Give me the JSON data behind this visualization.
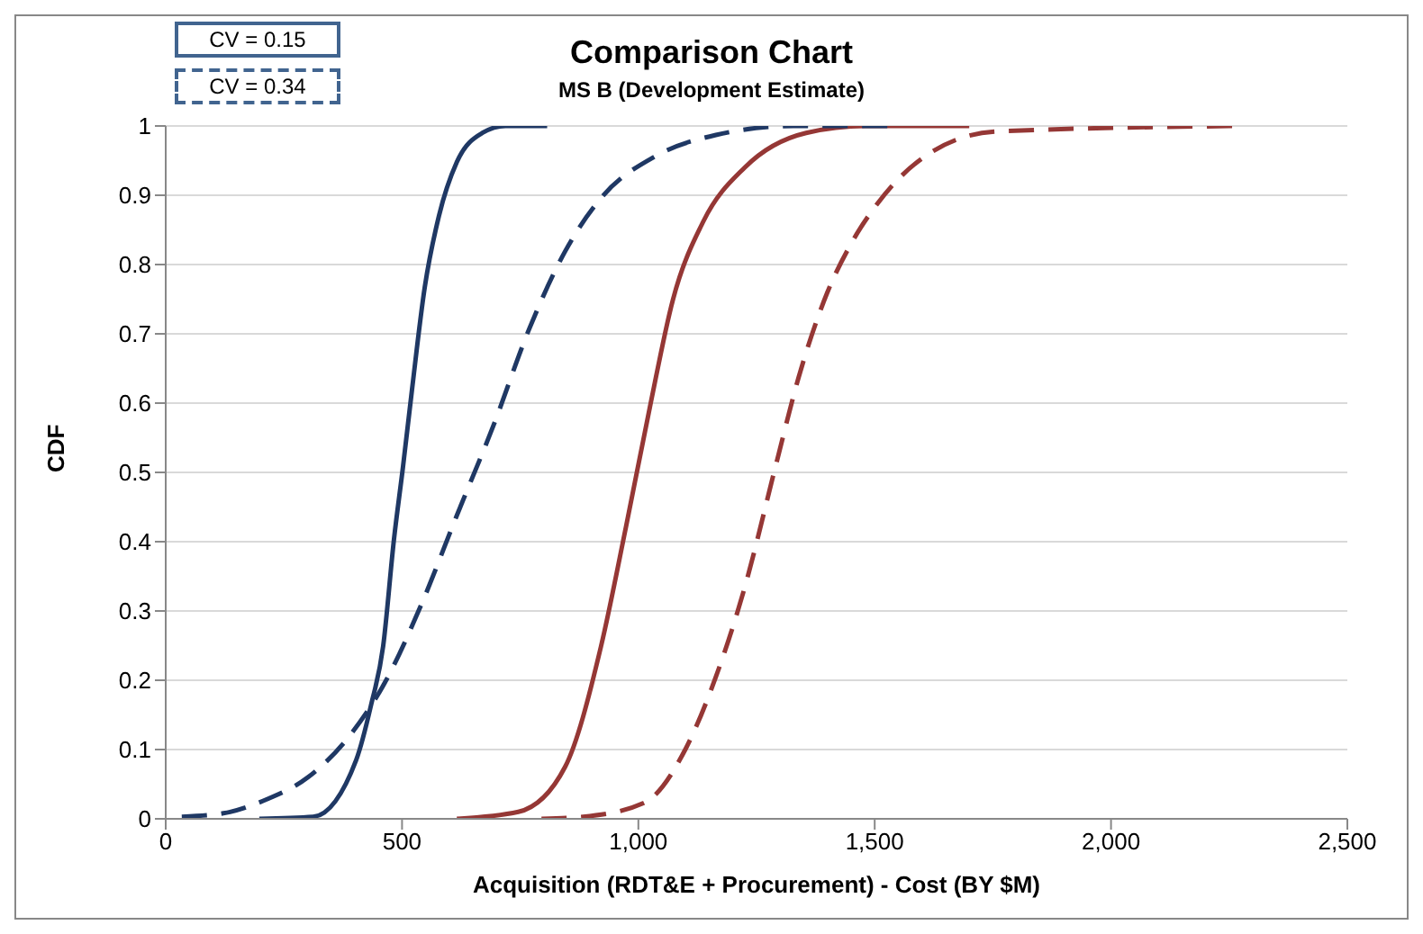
{
  "chart_data": {
    "type": "line",
    "title": "Comparison Chart",
    "subtitle": "MS B (Development Estimate)",
    "xlabel": "Acquisition (RDT&E + Procurement) - Cost (BY $M)",
    "ylabel": "CDF",
    "annotations": [
      "CV = 0.15",
      "CV = 0.34"
    ],
    "xlim": [
      0,
      2500
    ],
    "xticks": [
      0,
      500,
      {
        "value": 1000,
        "label": "1,000"
      },
      {
        "value": 1500,
        "label": "1,500"
      },
      {
        "value": 2000,
        "label": "2,000"
      },
      {
        "value": 2500,
        "label": "2,500"
      }
    ],
    "ylim": [
      0,
      1
    ],
    "yticks": [
      0,
      0.1,
      0.2,
      0.3,
      0.4,
      0.5,
      0.6,
      0.7,
      0.8,
      0.9,
      1
    ],
    "grid": "y",
    "legend": false,
    "marker": "none",
    "series": [
      {
        "color": "#953735",
        "line_style": "solid",
        "x": [
          616,
          746,
          845,
          921,
          974,
          1024,
          1073,
          1138,
          1225,
          1355,
          1480,
          1700
        ],
        "values": [
          0,
          0.01,
          0.075,
          0.249,
          0.422,
          0.593,
          0.749,
          0.863,
          0.94,
          0.99,
          1,
          1
        ]
      },
      {
        "color": "#953735",
        "line_style": "dashed",
        "x": [
          795,
          883,
          1012,
          1100,
          1164,
          1225,
          1290,
          1339,
          1400,
          1450,
          1507,
          1606,
          1758,
          2268
        ],
        "values": [
          0,
          0.003,
          0.023,
          0.101,
          0.205,
          0.334,
          0.508,
          0.637,
          0.76,
          0.83,
          0.889,
          0.956,
          0.992,
          1
        ]
      },
      {
        "color": "#1f3864",
        "line_style": "solid",
        "x": [
          198,
          312,
          403,
          434,
          460,
          483,
          502,
          521,
          548,
          578,
          616,
          670,
          719,
          807
        ],
        "values": [
          0,
          0.003,
          0.085,
          0.163,
          0.249,
          0.404,
          0.508,
          0.619,
          0.767,
          0.87,
          0.948,
          0.99,
          1,
          1
        ]
      },
      {
        "color": "#1f3864",
        "line_style": "dashed",
        "x": [
          34,
          122,
          213,
          301,
          388,
          464,
          540,
          616,
          693,
          769,
          845,
          921,
          1035,
          1164,
          1328,
          1545
        ],
        "values": [
          0.003,
          0.008,
          0.028,
          0.06,
          0.119,
          0.197,
          0.308,
          0.438,
          0.567,
          0.707,
          0.819,
          0.896,
          0.956,
          0.987,
          1,
          1
        ]
      }
    ]
  }
}
